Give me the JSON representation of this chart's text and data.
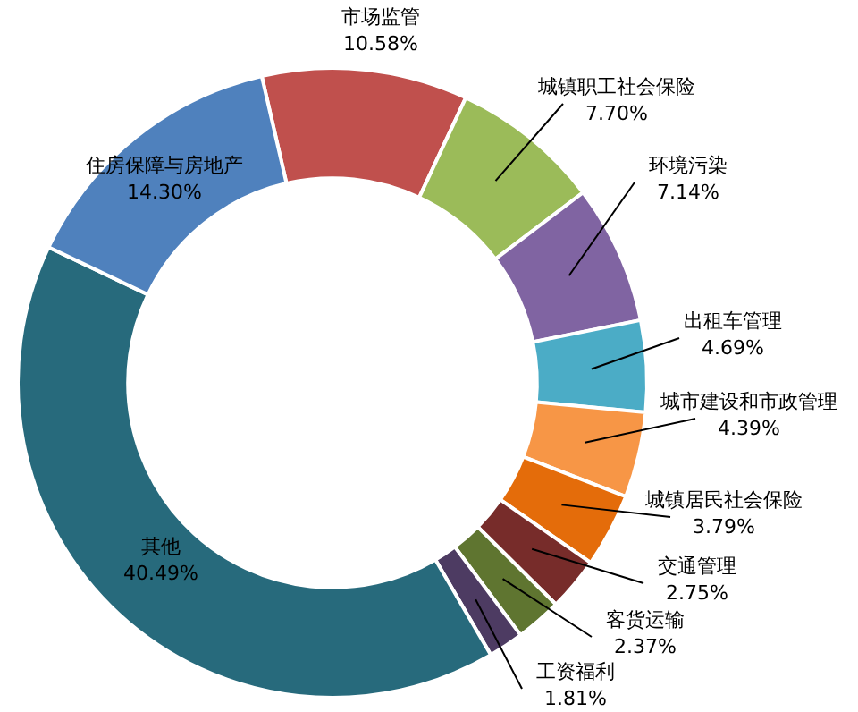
{
  "chart_data": {
    "type": "donut",
    "categories": [
      "市场监管",
      "城镇职工社会保险",
      "环境污染",
      "出租车管理",
      "城市建设和市政管理",
      "城镇居民社会保险",
      "交通管理",
      "客货运输",
      "工资福利",
      "其他",
      "住房保障与房地产"
    ],
    "values": [
      10.58,
      7.7,
      7.14,
      4.69,
      4.39,
      3.79,
      2.75,
      2.37,
      1.81,
      40.49,
      14.3
    ],
    "value_labels": [
      "10.58%",
      "7.70%",
      "7.14%",
      "4.69%",
      "4.39%",
      "3.79%",
      "2.75%",
      "2.37%",
      "1.81%",
      "40.49%",
      "14.30%"
    ],
    "colors": [
      "#c0504d",
      "#9bbb59",
      "#8064a2",
      "#4bacc6",
      "#f79646",
      "#e46c0a",
      "#772c2a",
      "#5f7530",
      "#4d3b62",
      "#276a7c",
      "#4f81bd"
    ]
  }
}
